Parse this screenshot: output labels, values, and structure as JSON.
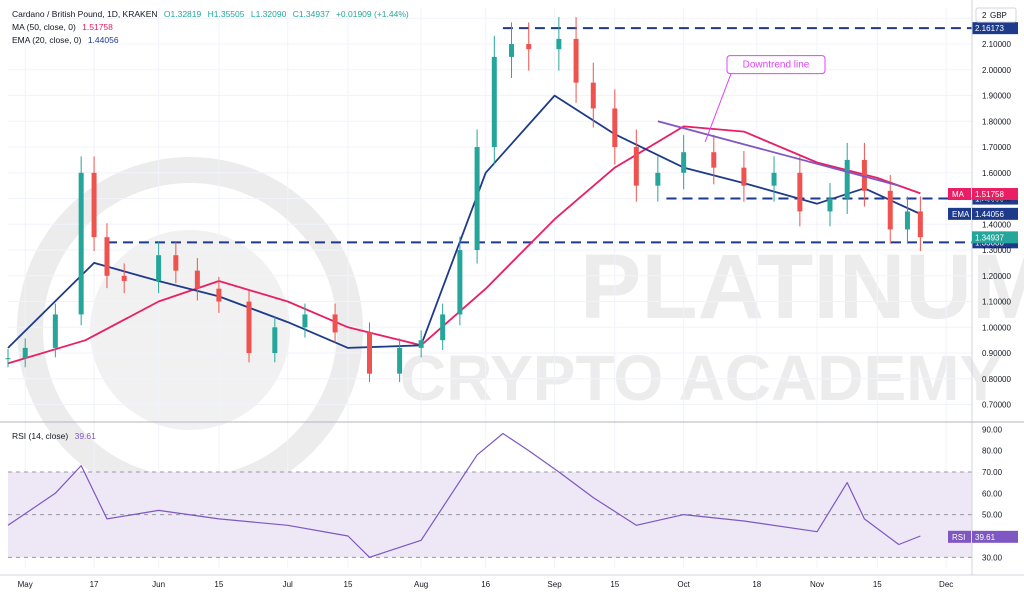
{
  "header": {
    "pair": "Cardano / British Pound, 1D, KRAKEN",
    "open": "O1.32819",
    "high": "H1.35505",
    "low": "L1.32090",
    "close": "C1.34937",
    "change": "+0.01909 (+1.44%)",
    "ma_label": "MA (50, close, 0)",
    "ma_value": "1.51758",
    "ema_label": "EMA (20, close, 0)",
    "ema_value": "1.44056",
    "rsi_label": "RSI (14, close)",
    "rsi_value": "39.61"
  },
  "watermark": {
    "line1": "PLATINUM",
    "line2": "CRYPTO ACADEMY"
  },
  "colors": {
    "up": "#26a69a",
    "down": "#ef5350",
    "ma": "#e91e63",
    "ema": "#1e3a8a",
    "level": "#1e3a8a",
    "trendline": "#7e57c2",
    "rsi": "#7e57c2",
    "rsi_band": "#ede7f6",
    "price_tag": "#26a69a"
  },
  "chart_data": {
    "type": "candlestick",
    "title": "Cardano / British Pound, 1D, KRAKEN",
    "currency": "GBP",
    "price_axis": {
      "ticks": [
        "0.70000",
        "0.80000",
        "0.90000",
        "1.00000",
        "1.10000",
        "1.20000",
        "1.30000",
        "1.40000",
        "1.50000",
        "1.60000",
        "1.70000",
        "1.80000",
        "1.90000",
        "2.00000",
        "2.10000",
        "2.20000"
      ],
      "top_label": "2",
      "ylim": [
        0.64,
        2.24
      ]
    },
    "x_axis": {
      "labels": [
        "May",
        "17",
        "Jun",
        "15",
        "Jul",
        "15",
        "Aug",
        "16",
        "Sep",
        "15",
        "Oct",
        "18",
        "Nov",
        "15",
        "Dec"
      ],
      "positions": [
        "2021-05-01",
        "2021-05-17",
        "2021-06-01",
        "2021-06-15",
        "2021-07-01",
        "2021-07-15",
        "2021-08-01",
        "2021-08-16",
        "2021-09-01",
        "2021-09-15",
        "2021-10-01",
        "2021-10-18",
        "2021-11-01",
        "2021-11-15",
        "2021-12-01"
      ],
      "xlim": [
        "2021-04-27",
        "2021-12-07"
      ]
    },
    "series": [
      {
        "name": "Close",
        "x": [
          "2021-04-27",
          "2021-05-01",
          "2021-05-08",
          "2021-05-14",
          "2021-05-17",
          "2021-05-20",
          "2021-05-24",
          "2021-06-01",
          "2021-06-05",
          "2021-06-10",
          "2021-06-15",
          "2021-06-22",
          "2021-06-28",
          "2021-07-05",
          "2021-07-12",
          "2021-07-20",
          "2021-07-27",
          "2021-08-01",
          "2021-08-06",
          "2021-08-10",
          "2021-08-14",
          "2021-08-18",
          "2021-08-22",
          "2021-08-26",
          "2021-09-02",
          "2021-09-06",
          "2021-09-10",
          "2021-09-15",
          "2021-09-20",
          "2021-09-25",
          "2021-10-01",
          "2021-10-08",
          "2021-10-15",
          "2021-10-22",
          "2021-10-28",
          "2021-11-04",
          "2021-11-08",
          "2021-11-12",
          "2021-11-18",
          "2021-11-22",
          "2021-11-25"
        ],
        "values": [
          0.88,
          0.92,
          1.05,
          1.6,
          1.35,
          1.2,
          1.18,
          1.28,
          1.22,
          1.15,
          1.1,
          0.9,
          1.0,
          1.05,
          0.98,
          0.82,
          0.92,
          0.95,
          1.05,
          1.3,
          1.7,
          2.05,
          2.1,
          2.08,
          2.12,
          1.95,
          1.85,
          1.7,
          1.55,
          1.6,
          1.68,
          1.62,
          1.55,
          1.6,
          1.45,
          1.5,
          1.65,
          1.53,
          1.38,
          1.45,
          1.35
        ]
      },
      {
        "name": "MA (50, close, 0)",
        "x": [
          "2021-04-27",
          "2021-05-15",
          "2021-06-01",
          "2021-06-15",
          "2021-07-01",
          "2021-07-15",
          "2021-08-01",
          "2021-08-16",
          "2021-09-01",
          "2021-09-15",
          "2021-10-01",
          "2021-10-15",
          "2021-11-01",
          "2021-11-15",
          "2021-11-25"
        ],
        "values": [
          0.86,
          0.95,
          1.1,
          1.18,
          1.1,
          1.0,
          0.93,
          1.15,
          1.42,
          1.62,
          1.78,
          1.76,
          1.64,
          1.58,
          1.52
        ]
      },
      {
        "name": "EMA (20, close, 0)",
        "x": [
          "2021-04-27",
          "2021-05-17",
          "2021-06-01",
          "2021-06-15",
          "2021-07-01",
          "2021-07-15",
          "2021-08-01",
          "2021-08-16",
          "2021-09-01",
          "2021-09-15",
          "2021-10-01",
          "2021-10-15",
          "2021-11-01",
          "2021-11-12",
          "2021-11-25"
        ],
        "values": [
          0.92,
          1.25,
          1.18,
          1.12,
          1.02,
          0.92,
          0.93,
          1.6,
          1.9,
          1.75,
          1.62,
          1.56,
          1.48,
          1.54,
          1.44
        ]
      },
      {
        "name": "RSI (14, close)",
        "x": [
          "2021-04-27",
          "2021-05-08",
          "2021-05-14",
          "2021-05-20",
          "2021-06-01",
          "2021-06-15",
          "2021-07-01",
          "2021-07-15",
          "2021-07-20",
          "2021-08-01",
          "2021-08-14",
          "2021-08-20",
          "2021-08-26",
          "2021-09-02",
          "2021-09-10",
          "2021-09-20",
          "2021-10-01",
          "2021-10-15",
          "2021-11-01",
          "2021-11-08",
          "2021-11-12",
          "2021-11-20",
          "2021-11-25"
        ],
        "values": [
          45,
          60,
          73,
          48,
          52,
          48,
          45,
          40,
          30,
          38,
          78,
          88,
          80,
          70,
          58,
          45,
          50,
          47,
          42,
          65,
          48,
          36,
          40
        ]
      }
    ],
    "levels": [
      {
        "label": "2.16173",
        "value": 2.16173
      },
      {
        "label": "1.50000",
        "value": 1.5
      },
      {
        "label": "1.33000",
        "value": 1.33
      }
    ],
    "price_tags": [
      {
        "label": "MA",
        "value": "1.51758"
      },
      {
        "label": "EMA",
        "value": "1.44056"
      },
      {
        "label": "",
        "value": "1.34937"
      }
    ],
    "trendline": {
      "label": "Downtrend line",
      "from": {
        "x": "2021-09-25",
        "y": 1.8
      },
      "to": {
        "x": "2021-11-20",
        "y": 1.55
      }
    },
    "rsi_axis": {
      "ticks": [
        "30.00",
        "40.00",
        "50.00",
        "60.00",
        "70.00",
        "80.00",
        "90.00"
      ],
      "ylim": [
        25,
        92
      ],
      "band": [
        30,
        70
      ],
      "midline": 50
    }
  }
}
